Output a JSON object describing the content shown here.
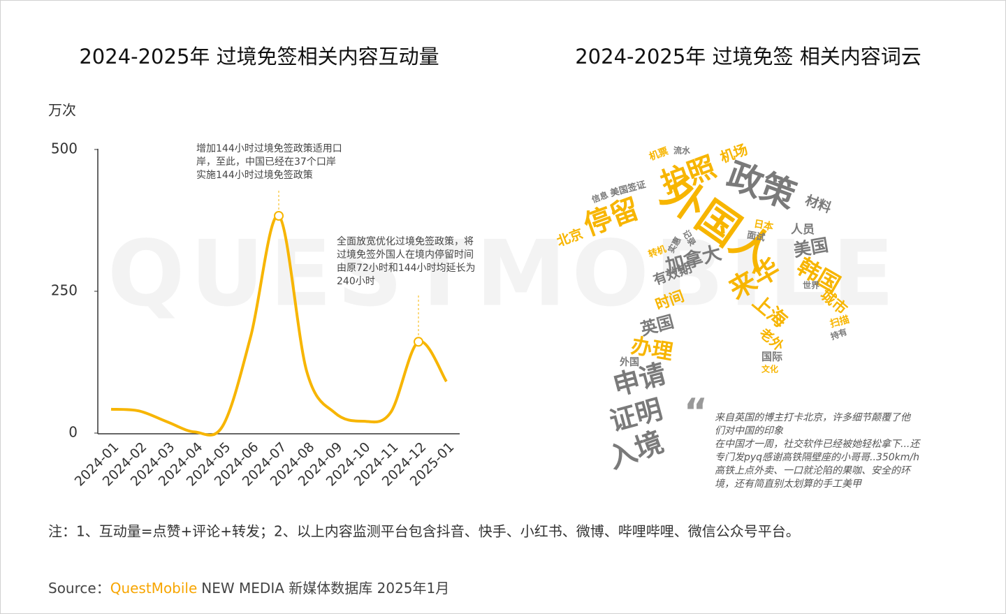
{
  "watermark": "QUESTMOBILE",
  "chart_data": [
    {
      "type": "line",
      "title": "2024-2025年 过境免签相关内容互动量",
      "y_label": "万次",
      "categories": [
        "2024-01",
        "2024-02",
        "2024-03",
        "2024-04",
        "2024-05",
        "2024-06",
        "2024-07",
        "2024-08",
        "2024-09",
        "2024-10",
        "2024-11",
        "2024-12",
        "2025-01"
      ],
      "values": [
        42,
        39,
        20,
        2,
        13,
        171,
        383,
        109,
        36,
        21,
        36,
        161,
        91
      ],
      "color": "#f7b500",
      "ylim": [
        0,
        500
      ],
      "yticks": [
        0,
        250,
        500
      ],
      "annotations": [
        [
          "增加144小时过境免签政策适用口",
          "岸，至此，中国已经在37个口岸",
          "实施144小时过境免签政策"
        ],
        [
          "全面放宽优化过境免签政策，将",
          "过境免签外国人在境内停留时间",
          "由原72小时和144小时均延长为",
          "240小时"
        ]
      ]
    },
    {
      "type": "wordcloud",
      "title": "2024-2025年 过境免签 相关内容词云",
      "colors": [
        "#f7b500",
        "#7a7a7a"
      ],
      "words": [
        "外国人",
        "政策",
        "护照",
        "停留",
        "来华",
        "韩国",
        "加拿大",
        "美国",
        "上海",
        "城市",
        "时间",
        "有效期",
        "英国",
        "办理",
        "申请",
        "证明",
        "入境",
        "机场",
        "材料",
        "人员",
        "北京",
        "美国签证",
        "老外",
        "国际",
        "机票",
        "流水",
        "日本",
        "面试",
        "扫描",
        "外国",
        "文化",
        "记录",
        "实惠",
        "转机",
        "信息",
        "世界",
        "持有"
      ],
      "quote": [
        "来自英国的博主打卡北京，许多细节颠覆了他",
        "们对中国的印象",
        "在中国才一周，社交软件已经被她轻松拿下...还",
        "专门发pyq感谢高铁隔壁座的小哥哥..350km/h",
        "高铁上点外卖、一口就沦陷的果咖、安全的环",
        "境，还有简直别太划算的手工美甲"
      ]
    }
  ],
  "note": "注：1、互动量=点赞+评论+转发；2、以上内容监测平台包含抖音、快手、小红书、微博、哔哩哔哩、微信公众号平台。",
  "source": {
    "label": "Source：",
    "brand": "QuestMobile",
    "text": "NEW MEDIA 新媒体数据库 2025年1月"
  }
}
